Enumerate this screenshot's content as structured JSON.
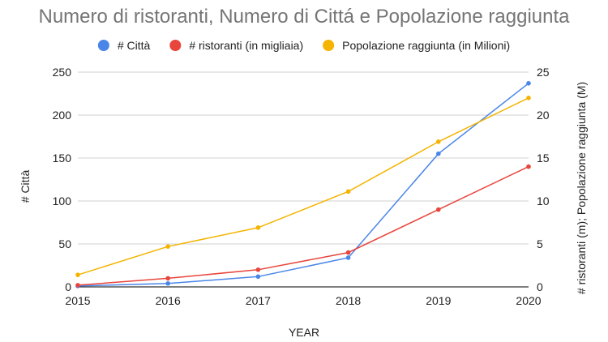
{
  "chart_data": {
    "type": "line",
    "title": "Numero di ristoranti, Numero di Cittá e Popolazione raggiunta",
    "xlabel": "YEAR",
    "ylabel_left": "# Città",
    "ylabel_right": "# ristoranti (m); Popolazione raggiunta (M)",
    "categories": [
      "2015",
      "2016",
      "2017",
      "2018",
      "2019",
      "2020"
    ],
    "ylim_left": [
      0,
      250
    ],
    "yticks_left": [
      "0",
      "50",
      "100",
      "150",
      "200",
      "250"
    ],
    "ylim_right": [
      0,
      25
    ],
    "yticks_right": [
      "0",
      "5",
      "10",
      "15",
      "20",
      "25"
    ],
    "grid": true,
    "legend_position": "top",
    "series": [
      {
        "name": "# Città",
        "axis": "left",
        "color": "#4a86e8",
        "values": [
          1,
          4,
          12,
          34,
          155,
          237
        ]
      },
      {
        "name": "# ristoranti (in migliaia)",
        "axis": "right",
        "color": "#e8453c",
        "values": [
          0.2,
          1.0,
          2.0,
          4.0,
          9.0,
          14.0
        ]
      },
      {
        "name": "Popolazione raggiunta (in Milioni)",
        "axis": "right",
        "color": "#f4b400",
        "values": [
          1.4,
          4.7,
          6.9,
          11.1,
          16.9,
          22.0
        ]
      }
    ]
  }
}
